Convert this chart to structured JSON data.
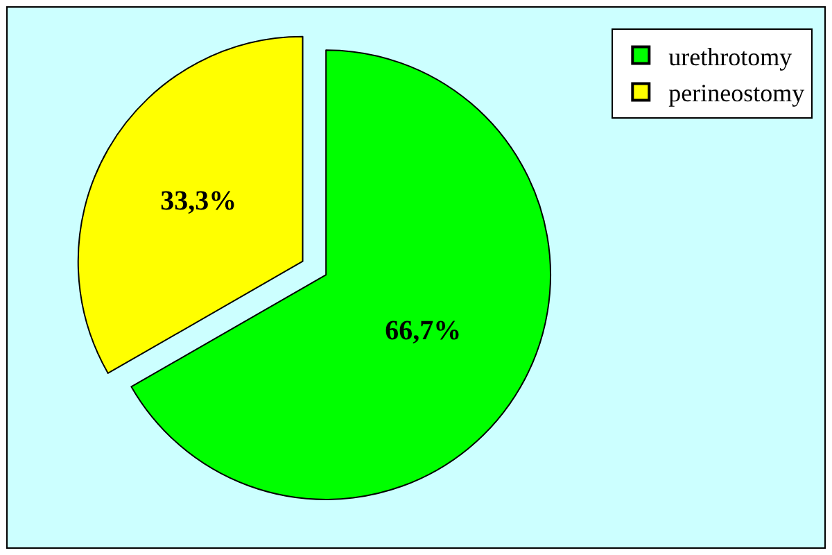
{
  "chart_data": {
    "type": "pie",
    "categories": [
      "urethrotomy",
      "perineostomy"
    ],
    "values": [
      66.7,
      33.3
    ],
    "colors": [
      "#00ff00",
      "#ffff00"
    ],
    "value_labels": [
      "66,7%",
      "33,3%"
    ],
    "legend": "top right"
  }
}
